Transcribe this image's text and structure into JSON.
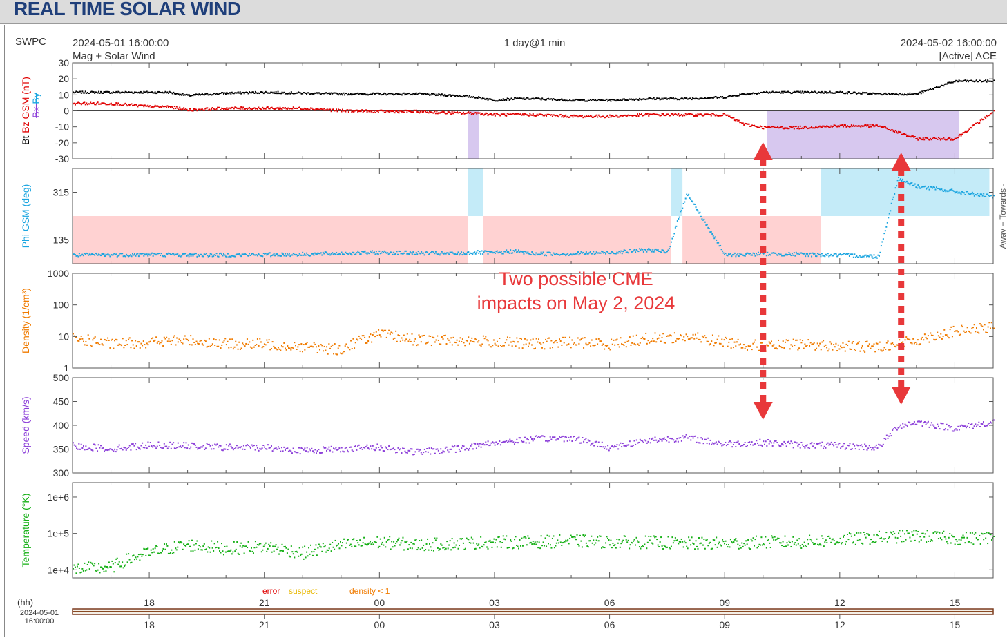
{
  "page_title": "REAL TIME SOLAR WIND",
  "header": {
    "source": "SWPC",
    "start_time": "2024-05-01 16:00:00",
    "product": "Mag + Solar Wind",
    "span": "1 day@1 min",
    "end_time": "2024-05-02 16:00:00",
    "spacecraft": "[Active] ACE"
  },
  "annotation": {
    "line1": "Two possible CME",
    "line2": "impacts on May 2, 2024",
    "color": "#e8383a"
  },
  "legend": {
    "error": "error",
    "suspect": "suspect",
    "density": "density < 1"
  },
  "time_axis": {
    "hh_label": "(hh)",
    "start_date": "2024-05-01",
    "start_clock": "16:00:00",
    "tick_labels": [
      "18",
      "21",
      "00",
      "03",
      "06",
      "09",
      "12",
      "15"
    ]
  },
  "colors": {
    "bt": "#000000",
    "bz": "#e00000",
    "bx": "#8c3fd9",
    "phi": "#1aa5e0",
    "density": "#f07b00",
    "speed": "#8c3fd9",
    "temperature": "#16b016",
    "neg_bz_fill": "#d7c8ef",
    "towards_fill": "#c4ebf8",
    "away_fill": "#ffd2d2"
  },
  "chart_data": [
    {
      "type": "scatter",
      "name": "mag",
      "ylabel_parts": [
        "Bt",
        "Bz GSM (nT)",
        "Bx",
        "By"
      ],
      "ylim": [
        -30,
        30
      ],
      "yticks": [
        "30",
        "20",
        "10",
        "0",
        "-10",
        "-20",
        "-30"
      ],
      "x_hours": [
        0,
        1,
        2,
        2.5,
        3,
        4,
        5,
        6,
        7,
        8,
        9,
        10,
        10.5,
        11,
        11.5,
        12,
        13,
        14,
        15,
        16,
        17,
        17.5,
        18,
        19,
        20,
        21,
        22,
        23,
        24
      ],
      "series": [
        {
          "name": "Bt",
          "values": [
            12,
            12,
            12,
            12,
            10,
            11.5,
            12,
            11.5,
            11,
            11,
            11,
            10,
            9,
            7,
            8,
            8,
            7,
            7,
            8,
            8,
            9,
            11,
            12,
            12,
            12,
            11,
            11,
            19,
            19
          ]
        },
        {
          "name": "Bz GSM",
          "values": [
            5,
            5,
            3,
            3,
            1,
            2,
            2,
            2,
            0.5,
            0,
            0,
            -1,
            -1,
            -2,
            -2,
            -2,
            -3,
            -3,
            -2,
            -2,
            -2,
            -8,
            -10,
            -10,
            -9,
            -9,
            -17,
            -17,
            0
          ]
        }
      ],
      "negative_bz_intervals": [
        [
          10.3,
          10.6
        ],
        [
          18.1,
          23.1
        ]
      ]
    },
    {
      "type": "scatter",
      "name": "phi",
      "ylabel": "Phi GSM (deg)",
      "right_labels": [
        "Away +",
        "Towards -"
      ],
      "ylim": [
        45,
        405
      ],
      "yticks": [
        "315",
        "135"
      ],
      "x_hours": [
        0,
        2,
        4,
        6,
        8,
        10,
        10.5,
        11,
        11.5,
        12,
        13,
        14,
        15,
        15.5,
        16,
        17,
        18,
        20,
        21,
        21.5,
        22,
        23,
        24
      ],
      "values": [
        80,
        82,
        80,
        83,
        90,
        85,
        90,
        88,
        95,
        85,
        85,
        90,
        100,
        90,
        315,
        80,
        85,
        80,
        75,
        370,
        340,
        320,
        300
      ],
      "towards_intervals": [
        [
          10.3,
          10.7
        ],
        [
          15.6,
          15.9
        ],
        [
          19.5,
          23.9
        ]
      ],
      "away_intervals": [
        [
          0,
          10.3
        ],
        [
          10.7,
          15.6
        ],
        [
          15.9,
          19.5
        ]
      ]
    },
    {
      "type": "scatter",
      "name": "density",
      "ylabel": "Density (1/cm³)",
      "yscale": "log",
      "ylim": [
        1,
        1000
      ],
      "yticks": [
        "1000",
        "100",
        "10",
        "1"
      ],
      "x_hours": [
        0,
        1,
        2,
        3,
        4,
        5,
        6,
        7,
        8,
        9,
        10,
        11,
        12,
        13,
        14,
        15,
        16,
        17,
        18,
        19,
        20,
        21,
        22,
        23,
        24
      ],
      "values": [
        9,
        6,
        7,
        8,
        6,
        6,
        5,
        4,
        12,
        8,
        8,
        7,
        6,
        7,
        6,
        9,
        10,
        7,
        5,
        6,
        5,
        5,
        8,
        15,
        20
      ]
    },
    {
      "type": "scatter",
      "name": "speed",
      "ylabel": "Speed (km/s)",
      "ylim": [
        300,
        500
      ],
      "yticks": [
        "500",
        "450",
        "400",
        "350",
        "300"
      ],
      "x_hours": [
        0,
        1,
        2,
        3,
        4,
        5,
        6,
        7,
        8,
        9,
        10,
        11,
        12,
        13,
        14,
        15,
        16,
        17,
        18,
        19,
        20,
        21,
        21.5,
        22,
        23,
        24
      ],
      "values": [
        358,
        352,
        360,
        358,
        355,
        355,
        348,
        352,
        355,
        345,
        352,
        365,
        372,
        375,
        355,
        370,
        375,
        362,
        365,
        360,
        358,
        355,
        400,
        408,
        395,
        408
      ]
    },
    {
      "type": "scatter",
      "name": "temperature",
      "ylabel": "Temperature (°K)",
      "yscale": "log",
      "ylim": [
        6000,
        2500000
      ],
      "yticks": [
        "1e+6",
        "1e+5",
        "1e+4"
      ],
      "x_hours": [
        0,
        1,
        2,
        3,
        4,
        5,
        6,
        7,
        8,
        9,
        10,
        11,
        12,
        13,
        14,
        15,
        16,
        17,
        18,
        19,
        20,
        21,
        22,
        23,
        24
      ],
      "values": [
        11000,
        12000,
        30000,
        50000,
        40000,
        45000,
        30000,
        50000,
        60000,
        50000,
        55000,
        60000,
        60000,
        65000,
        60000,
        60000,
        55000,
        55000,
        60000,
        60000,
        70000,
        80000,
        90000,
        75000,
        80000
      ]
    }
  ]
}
